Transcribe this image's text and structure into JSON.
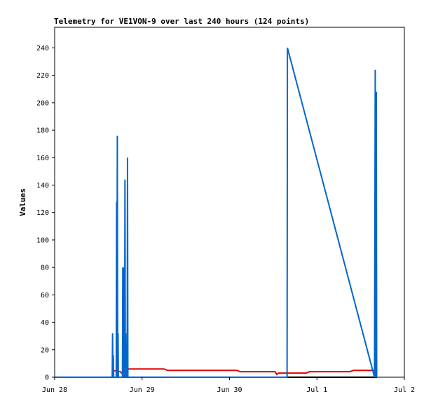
{
  "chart_data": {
    "type": "line",
    "title": "Telemetry for VE1VON-9 over last 240 hours (124 points)",
    "xlabel": "",
    "ylabel": "Values",
    "ylim": [
      0,
      255
    ],
    "xlim": [
      "Jun 28 00:00",
      "Jul 2 00:00"
    ],
    "x_unit": "hours since Jun 28 00:00",
    "y_ticks": [
      0,
      20,
      40,
      60,
      80,
      100,
      120,
      140,
      160,
      180,
      200,
      220,
      240
    ],
    "x_ticks": [
      {
        "label": "Jun 28",
        "x": 0
      },
      {
        "label": "Jun 29",
        "x": 24
      },
      {
        "label": "Jun 30",
        "x": 48
      },
      {
        "label": "Jul 1",
        "x": 72
      },
      {
        "label": "Jul 2",
        "x": 96
      }
    ],
    "grid": false,
    "legend": "none",
    "series": [
      {
        "color": "#0066cc",
        "points": [
          [
            15.8,
            0
          ],
          [
            15.9,
            32
          ],
          [
            16.0,
            0
          ],
          [
            16.1,
            16
          ],
          [
            16.2,
            0
          ],
          [
            16.9,
            0
          ],
          [
            17.0,
            128
          ],
          [
            17.1,
            0
          ],
          [
            17.2,
            176
          ],
          [
            17.3,
            0
          ],
          [
            17.4,
            32
          ],
          [
            17.5,
            0
          ],
          [
            18.6,
            0
          ],
          [
            18.7,
            80
          ],
          [
            18.8,
            0
          ],
          [
            18.9,
            80
          ],
          [
            19.0,
            20
          ],
          [
            19.1,
            60
          ],
          [
            19.2,
            0
          ],
          [
            19.3,
            144
          ],
          [
            19.4,
            0
          ],
          [
            19.5,
            32
          ],
          [
            19.6,
            0
          ],
          [
            19.9,
            0
          ],
          [
            20.0,
            160
          ],
          [
            20.1,
            0
          ],
          [
            0,
            0
          ],
          [
            63.8,
            0
          ],
          [
            63.9,
            240
          ],
          [
            87.8,
            0
          ],
          [
            87.9,
            104
          ],
          [
            88.0,
            224
          ],
          [
            88.1,
            0
          ],
          [
            88.2,
            104
          ],
          [
            88.3,
            208
          ],
          [
            88.4,
            0
          ]
        ]
      },
      {
        "color": "#dd0000",
        "points": [
          [
            15.8,
            5
          ],
          [
            18.0,
            4
          ],
          [
            18.4,
            3
          ],
          [
            20.4,
            6
          ],
          [
            30.0,
            6
          ],
          [
            31.0,
            5
          ],
          [
            50.0,
            5
          ],
          [
            51.0,
            4
          ],
          [
            60.5,
            4
          ],
          [
            61.0,
            2
          ],
          [
            61.5,
            3
          ],
          [
            69.0,
            3
          ],
          [
            70.0,
            4
          ],
          [
            81.0,
            4
          ],
          [
            82.0,
            5
          ],
          [
            88.5,
            5
          ]
        ]
      },
      {
        "color": "#000000",
        "points": [
          [
            15.8,
            0
          ],
          [
            88.5,
            0
          ]
        ]
      }
    ]
  }
}
